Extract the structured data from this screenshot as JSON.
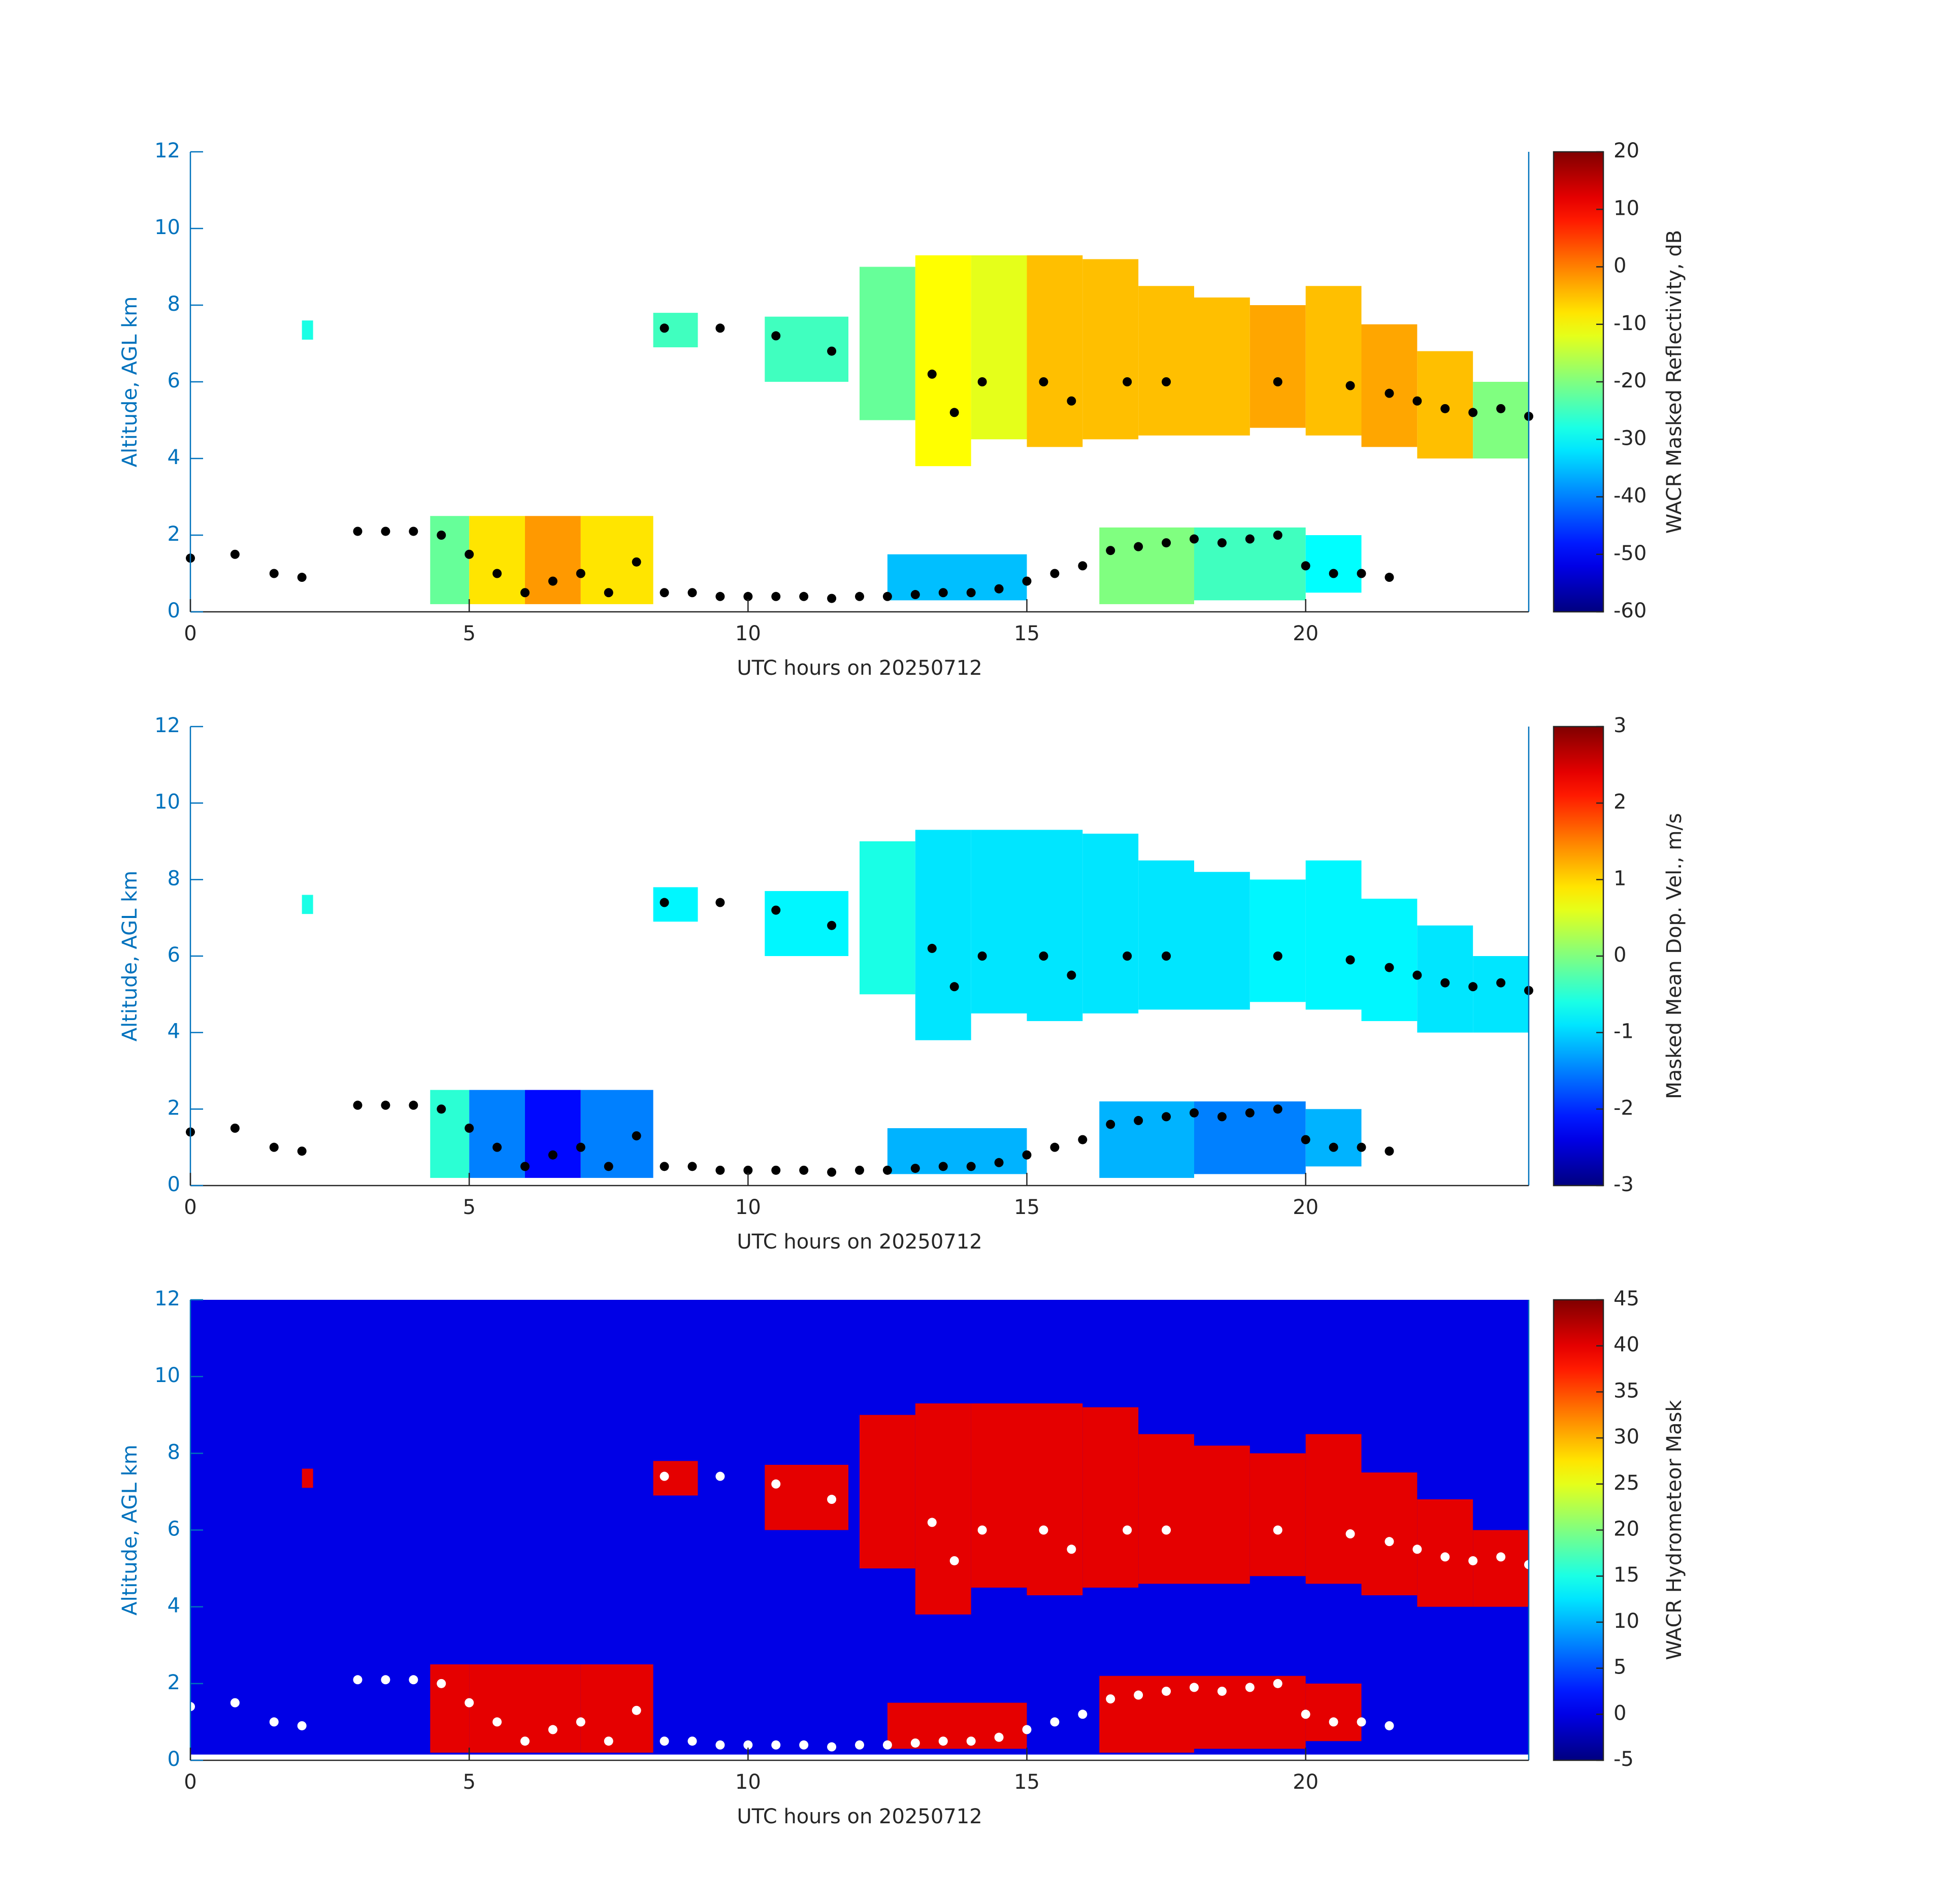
{
  "chart_data": [
    {
      "type": "heatmap",
      "xlabel": "UTC hours on 20250712",
      "ylabel": "Altitude, AGL km",
      "colorbar_label": "WACR Masked Reflectivity, dB",
      "xlim": [
        0,
        24
      ],
      "xticks": [
        0,
        5,
        10,
        15,
        20
      ],
      "ylim": [
        0,
        12
      ],
      "yticks": [
        0,
        2,
        4,
        6,
        8,
        10,
        12
      ],
      "clim": [
        -60,
        20
      ],
      "cticks": [
        -60,
        -50,
        -40,
        -30,
        -20,
        -10,
        0,
        10,
        20
      ],
      "colormap": "jet",
      "cells": [
        [
          2.0,
          2.2,
          7.1,
          7.6,
          -28
        ],
        [
          8.3,
          9.1,
          6.9,
          7.8,
          -25
        ],
        [
          10.3,
          11.8,
          6.0,
          7.7,
          -25
        ],
        [
          12,
          13,
          5,
          9,
          -22
        ],
        [
          13,
          14,
          3.8,
          9.3,
          -10
        ],
        [
          14,
          15,
          4.5,
          9.3,
          -12
        ],
        [
          15,
          16,
          4.3,
          9.3,
          -5
        ],
        [
          16,
          17,
          4.5,
          9.2,
          -5
        ],
        [
          17,
          18,
          4.6,
          8.5,
          -5
        ],
        [
          18,
          19,
          4.6,
          8.2,
          -5
        ],
        [
          19,
          20,
          4.8,
          8.0,
          -3
        ],
        [
          20,
          21,
          4.6,
          8.5,
          -5
        ],
        [
          21,
          22,
          4.3,
          7.5,
          -3
        ],
        [
          22,
          23,
          4.0,
          6.8,
          -5
        ],
        [
          23,
          24,
          4.0,
          6.0,
          -20
        ],
        [
          4.3,
          5,
          0.2,
          2.5,
          -22
        ],
        [
          5,
          6,
          0.2,
          2.5,
          -8
        ],
        [
          6,
          7,
          0.2,
          2.5,
          -2
        ],
        [
          7,
          8.3,
          0.2,
          2.5,
          -8
        ],
        [
          12.5,
          15,
          0.3,
          1.5,
          -35
        ],
        [
          16.3,
          18,
          0.2,
          2.2,
          -20
        ],
        [
          18,
          20,
          0.3,
          2.2,
          -25
        ],
        [
          20,
          21,
          0.5,
          2.0,
          -30
        ]
      ],
      "points": {
        "color": "#000000",
        "x": [
          0,
          0.8,
          1.5,
          2,
          3,
          3.5,
          4,
          4.5,
          5,
          5.5,
          6,
          6.5,
          7,
          7.5,
          8,
          8.5,
          9,
          9.5,
          10,
          10.5,
          11,
          11.5,
          12,
          12.5,
          13,
          13.5,
          14,
          14.5,
          15,
          15.5,
          16,
          16.5,
          17,
          17.5,
          18,
          18.5,
          19,
          19.5,
          20,
          20.5,
          21,
          21.5,
          8.5,
          9.5,
          10.5,
          11.5,
          13.3,
          13.7,
          14.2,
          15.3,
          15.8,
          16.8,
          17.5,
          19.5,
          20.8,
          21.5,
          22,
          22.5,
          23,
          23.5,
          24
        ],
        "y": [
          1.4,
          1.5,
          1.0,
          0.9,
          2.1,
          2.1,
          2.1,
          2.0,
          1.5,
          1.0,
          0.5,
          0.8,
          1.0,
          0.5,
          1.3,
          0.5,
          0.5,
          0.4,
          0.4,
          0.4,
          0.4,
          0.35,
          0.4,
          0.4,
          0.45,
          0.5,
          0.5,
          0.6,
          0.8,
          1.0,
          1.2,
          1.6,
          1.7,
          1.8,
          1.9,
          1.8,
          1.9,
          2.0,
          1.2,
          1.0,
          1.0,
          0.9,
          7.4,
          7.4,
          7.2,
          6.8,
          6.2,
          5.2,
          6.0,
          6.0,
          5.5,
          6.0,
          6.0,
          6.0,
          5.9,
          5.7,
          5.5,
          5.3,
          5.2,
          5.3,
          5.1
        ]
      }
    },
    {
      "type": "heatmap",
      "xlabel": "UTC hours on 20250712",
      "ylabel": "Altitude, AGL km",
      "colorbar_label": "Masked Mean Dop. Vel., m/s",
      "xlim": [
        0,
        24
      ],
      "xticks": [
        0,
        5,
        10,
        15,
        20
      ],
      "ylim": [
        0,
        12
      ],
      "yticks": [
        0,
        2,
        4,
        6,
        8,
        10,
        12
      ],
      "clim": [
        -3,
        3
      ],
      "cticks": [
        -3,
        -2,
        -1,
        0,
        1,
        2,
        3
      ],
      "colormap": "jet",
      "cells": [
        [
          2.0,
          2.2,
          7.1,
          7.6,
          -0.6
        ],
        [
          8.3,
          9.1,
          6.9,
          7.8,
          -0.8
        ],
        [
          10.3,
          11.8,
          6.0,
          7.7,
          -0.8
        ],
        [
          12,
          13,
          5,
          9,
          -0.6
        ],
        [
          13,
          14,
          3.8,
          9.3,
          -0.9
        ],
        [
          14,
          15,
          4.5,
          9.3,
          -0.9
        ],
        [
          15,
          16,
          4.3,
          9.3,
          -0.9
        ],
        [
          16,
          17,
          4.5,
          9.2,
          -0.9
        ],
        [
          17,
          18,
          4.6,
          8.5,
          -0.9
        ],
        [
          18,
          19,
          4.6,
          8.2,
          -0.9
        ],
        [
          19,
          20,
          4.8,
          8.0,
          -0.8
        ],
        [
          20,
          21,
          4.6,
          8.5,
          -0.8
        ],
        [
          21,
          22,
          4.3,
          7.5,
          -0.8
        ],
        [
          22,
          23,
          4.0,
          6.8,
          -0.9
        ],
        [
          23,
          24,
          4.0,
          6.0,
          -0.9
        ],
        [
          4.3,
          5,
          0.2,
          2.5,
          -0.5
        ],
        [
          5,
          6,
          0.2,
          2.5,
          -1.5
        ],
        [
          6,
          7,
          0.2,
          2.5,
          -2.2
        ],
        [
          7,
          8.3,
          0.2,
          2.5,
          -1.5
        ],
        [
          12.5,
          15,
          0.3,
          1.5,
          -1.2
        ],
        [
          16.3,
          18,
          0.2,
          2.2,
          -1.2
        ],
        [
          18,
          20,
          0.3,
          2.2,
          -1.5
        ],
        [
          20,
          21,
          0.5,
          2.0,
          -1.2
        ]
      ],
      "points": {
        "color": "#000000",
        "x": [
          0,
          0.8,
          1.5,
          2,
          3,
          3.5,
          4,
          4.5,
          5,
          5.5,
          6,
          6.5,
          7,
          7.5,
          8,
          8.5,
          9,
          9.5,
          10,
          10.5,
          11,
          11.5,
          12,
          12.5,
          13,
          13.5,
          14,
          14.5,
          15,
          15.5,
          16,
          16.5,
          17,
          17.5,
          18,
          18.5,
          19,
          19.5,
          20,
          20.5,
          21,
          21.5,
          8.5,
          9.5,
          10.5,
          11.5,
          13.3,
          13.7,
          14.2,
          15.3,
          15.8,
          16.8,
          17.5,
          19.5,
          20.8,
          21.5,
          22,
          22.5,
          23,
          23.5,
          24
        ],
        "y": [
          1.4,
          1.5,
          1.0,
          0.9,
          2.1,
          2.1,
          2.1,
          2.0,
          1.5,
          1.0,
          0.5,
          0.8,
          1.0,
          0.5,
          1.3,
          0.5,
          0.5,
          0.4,
          0.4,
          0.4,
          0.4,
          0.35,
          0.4,
          0.4,
          0.45,
          0.5,
          0.5,
          0.6,
          0.8,
          1.0,
          1.2,
          1.6,
          1.7,
          1.8,
          1.9,
          1.8,
          1.9,
          2.0,
          1.2,
          1.0,
          1.0,
          0.9,
          7.4,
          7.4,
          7.2,
          6.8,
          6.2,
          5.2,
          6.0,
          6.0,
          5.5,
          6.0,
          6.0,
          6.0,
          5.9,
          5.7,
          5.5,
          5.3,
          5.2,
          5.3,
          5.1
        ]
      }
    },
    {
      "type": "heatmap",
      "xlabel": "UTC hours on 20250712",
      "ylabel": "Altitude, AGL km",
      "colorbar_label": "WACR Hydrometeor Mask",
      "xlim": [
        0,
        24
      ],
      "xticks": [
        0,
        5,
        10,
        15,
        20
      ],
      "ylim": [
        0,
        12
      ],
      "yticks": [
        0,
        2,
        4,
        6,
        8,
        10,
        12
      ],
      "clim": [
        -5,
        45
      ],
      "cticks": [
        -5,
        0,
        5,
        10,
        15,
        20,
        25,
        30,
        35,
        40,
        45
      ],
      "colormap": "jet",
      "cells": [
        [
          0,
          24,
          0.15,
          12,
          0
        ],
        [
          2.0,
          2.2,
          7.1,
          7.6,
          40
        ],
        [
          8.3,
          9.1,
          6.9,
          7.8,
          40
        ],
        [
          10.3,
          11.8,
          6.0,
          7.7,
          40
        ],
        [
          12,
          13,
          5,
          9,
          40
        ],
        [
          13,
          14,
          3.8,
          9.3,
          40
        ],
        [
          14,
          15,
          4.5,
          9.3,
          40
        ],
        [
          15,
          16,
          4.3,
          9.3,
          40
        ],
        [
          16,
          17,
          4.5,
          9.2,
          40
        ],
        [
          17,
          18,
          4.6,
          8.5,
          40
        ],
        [
          18,
          19,
          4.6,
          8.2,
          40
        ],
        [
          19,
          20,
          4.8,
          8.0,
          40
        ],
        [
          20,
          21,
          4.6,
          8.5,
          40
        ],
        [
          21,
          22,
          4.3,
          7.5,
          40
        ],
        [
          22,
          23,
          4.0,
          6.8,
          40
        ],
        [
          23,
          24,
          4.0,
          6.0,
          40
        ],
        [
          4.3,
          5,
          0.2,
          2.5,
          40
        ],
        [
          5,
          6,
          0.2,
          2.5,
          40
        ],
        [
          6,
          7,
          0.2,
          2.5,
          40
        ],
        [
          7,
          8.3,
          0.2,
          2.5,
          40
        ],
        [
          12.5,
          15,
          0.3,
          1.5,
          40
        ],
        [
          16.3,
          18,
          0.2,
          2.2,
          40
        ],
        [
          18,
          20,
          0.3,
          2.2,
          40
        ],
        [
          20,
          21,
          0.5,
          2.0,
          40
        ]
      ],
      "points": {
        "color": "#ffffff",
        "x": [
          0,
          0.8,
          1.5,
          2,
          3,
          3.5,
          4,
          4.5,
          5,
          5.5,
          6,
          6.5,
          7,
          7.5,
          8,
          8.5,
          9,
          9.5,
          10,
          10.5,
          11,
          11.5,
          12,
          12.5,
          13,
          13.5,
          14,
          14.5,
          15,
          15.5,
          16,
          16.5,
          17,
          17.5,
          18,
          18.5,
          19,
          19.5,
          20,
          20.5,
          21,
          21.5,
          8.5,
          9.5,
          10.5,
          11.5,
          13.3,
          13.7,
          14.2,
          15.3,
          15.8,
          16.8,
          17.5,
          19.5,
          20.8,
          21.5,
          22,
          22.5,
          23,
          23.5,
          24
        ],
        "y": [
          1.4,
          1.5,
          1.0,
          0.9,
          2.1,
          2.1,
          2.1,
          2.0,
          1.5,
          1.0,
          0.5,
          0.8,
          1.0,
          0.5,
          1.3,
          0.5,
          0.5,
          0.4,
          0.4,
          0.4,
          0.4,
          0.35,
          0.4,
          0.4,
          0.45,
          0.5,
          0.5,
          0.6,
          0.8,
          1.0,
          1.2,
          1.6,
          1.7,
          1.8,
          1.9,
          1.8,
          1.9,
          2.0,
          1.2,
          1.0,
          1.0,
          0.9,
          7.4,
          7.4,
          7.2,
          6.8,
          6.2,
          5.2,
          6.0,
          6.0,
          5.5,
          6.0,
          6.0,
          6.0,
          5.9,
          5.7,
          5.5,
          5.3,
          5.2,
          5.3,
          5.1
        ]
      }
    }
  ]
}
